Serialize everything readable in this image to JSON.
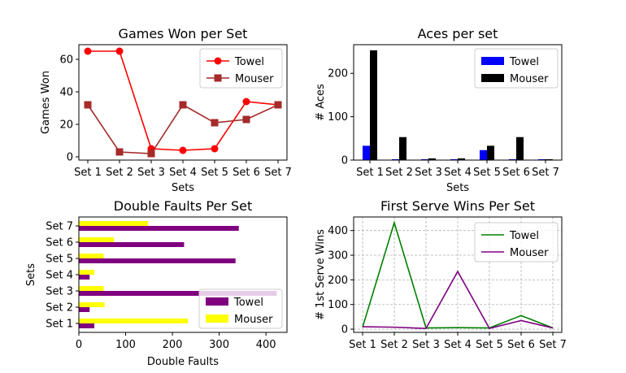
{
  "chart_data": [
    {
      "type": "line",
      "title": "Games Won per Set",
      "xlabel": "Sets",
      "ylabel": "Games Won",
      "categories": [
        "Set 1",
        "Set 2",
        "Set 3",
        "Set 4",
        "Set 5",
        "Set 6",
        "Set 7"
      ],
      "ylim": [
        -2,
        69
      ],
      "yticks": [
        0,
        20,
        40,
        60
      ],
      "grid": false,
      "legend": "top-right",
      "series": [
        {
          "name": "Towel",
          "values": [
            65,
            65,
            5,
            4,
            5,
            34,
            32
          ],
          "color": "#ff0000",
          "marker": "circle"
        },
        {
          "name": "Mouser",
          "values": [
            32,
            3,
            2,
            32,
            21,
            23,
            32
          ],
          "color": "#a52a2a",
          "marker": "square"
        }
      ]
    },
    {
      "type": "bar",
      "title": "Aces per set",
      "xlabel": "Sets",
      "ylabel": "# Aces",
      "categories": [
        "Set 1",
        "Set 2",
        "Set 3",
        "Set 4",
        "Set 5",
        "Set 6",
        "Set 7"
      ],
      "ylim": [
        0,
        266
      ],
      "yticks": [
        0,
        100,
        200
      ],
      "grid": false,
      "legend": "top-right",
      "series": [
        {
          "name": "Towel",
          "values": [
            33,
            2,
            2,
            2,
            23,
            2,
            2
          ],
          "color": "#0000ff"
        },
        {
          "name": "Mouser",
          "values": [
            253,
            53,
            4,
            4,
            33,
            53,
            2
          ],
          "color": "#000000"
        }
      ]
    },
    {
      "type": "bar",
      "orientation": "horizontal",
      "title": "Double Faults Per Set",
      "xlabel": "Double Faults",
      "ylabel": "Sets",
      "categories": [
        "Set 1",
        "Set 2",
        "Set 3",
        "Set 4",
        "Set 5",
        "Set 6",
        "Set 7"
      ],
      "xlim": [
        0,
        445
      ],
      "xticks": [
        0,
        100,
        200,
        300,
        400
      ],
      "grid": false,
      "legend": "bottom-right",
      "series": [
        {
          "name": "Towel",
          "values": [
            33,
            23,
            423,
            23,
            335,
            225,
            342
          ],
          "color": "#800080"
        },
        {
          "name": "Mouser",
          "values": [
            233,
            55,
            53,
            33,
            53,
            75,
            148
          ],
          "color": "#ffff00"
        }
      ]
    },
    {
      "type": "line",
      "title": "First Serve Wins Per Set",
      "xlabel": "",
      "ylabel": "# 1st Serve Wins",
      "categories": [
        "Set 1",
        "Set 2",
        "Set 3",
        "Set 4",
        "Set 5",
        "Set 6",
        "Set 7"
      ],
      "ylim": [
        -13,
        455
      ],
      "yticks": [
        0,
        100,
        200,
        300,
        400
      ],
      "grid": true,
      "legend": "top-right",
      "series": [
        {
          "name": "Towel",
          "values": [
            8,
            432,
            5,
            6,
            5,
            55,
            5
          ],
          "color": "#008000"
        },
        {
          "name": "Mouser",
          "values": [
            10,
            8,
            3,
            234,
            3,
            35,
            5
          ],
          "color": "#800080"
        }
      ]
    }
  ]
}
